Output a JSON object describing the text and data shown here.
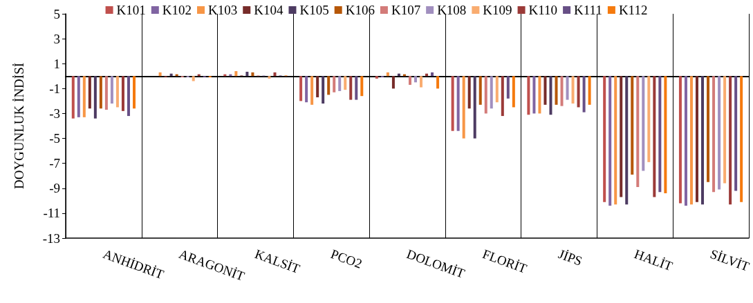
{
  "chart_data": {
    "type": "bar",
    "ylabel": "DOYGUNLUK İNDİSİ",
    "categories": [
      "ANHİDRİT",
      "ARAGONİT",
      "KALSİT",
      "PCO2",
      "DOLOMİT",
      "FLORİT",
      "JİPS",
      "HALİT",
      "SİLVİT"
    ],
    "series": [
      {
        "name": "K101",
        "color": "#c0504d",
        "values": [
          -3.4,
          0,
          0.15,
          -2.0,
          -0.2,
          -4.4,
          -3.1,
          -10.1,
          -10.2
        ]
      },
      {
        "name": "K102",
        "color": "#8064a2",
        "values": [
          -3.3,
          0,
          0.15,
          -2.1,
          -0.1,
          -4.4,
          -3.0,
          -10.4,
          -10.4
        ]
      },
      {
        "name": "K103",
        "color": "#f79646",
        "values": [
          -3.3,
          0.3,
          0.4,
          -2.3,
          0.3,
          -5.0,
          -3.0,
          -10.3,
          -10.3
        ]
      },
      {
        "name": "K104",
        "color": "#772c2a",
        "values": [
          -2.6,
          -0.1,
          0.05,
          -1.7,
          -1.0,
          -2.6,
          -2.3,
          -9.7,
          -10.1
        ]
      },
      {
        "name": "K105",
        "color": "#4d3b62",
        "values": [
          -3.4,
          0.2,
          0.35,
          -2.2,
          0.2,
          -5.0,
          -3.1,
          -10.3,
          -10.3
        ]
      },
      {
        "name": "K106",
        "color": "#b65708",
        "values": [
          -2.6,
          0.15,
          0.3,
          -1.5,
          0.15,
          -2.3,
          -2.3,
          -7.9,
          -8.5
        ]
      },
      {
        "name": "K107",
        "color": "#d37b79",
        "values": [
          -2.7,
          -0.1,
          0.05,
          -1.3,
          -0.7,
          -3.0,
          -2.4,
          -8.9,
          -9.3
        ]
      },
      {
        "name": "K108",
        "color": "#a18fbf",
        "values": [
          -2.2,
          -0.1,
          0.05,
          -1.2,
          -0.5,
          -2.6,
          -1.9,
          -7.6,
          -9.1
        ]
      },
      {
        "name": "K109",
        "color": "#f9ac70",
        "values": [
          -2.5,
          -0.4,
          -0.2,
          -1.1,
          -0.9,
          -2.1,
          -2.2,
          -6.9,
          -8.6
        ]
      },
      {
        "name": "K110",
        "color": "#9b3a38",
        "values": [
          -2.8,
          0.15,
          0.3,
          -1.9,
          0.2,
          -3.2,
          -2.5,
          -9.7,
          -10.3
        ]
      },
      {
        "name": "K111",
        "color": "#674f86",
        "values": [
          -3.2,
          -0.1,
          0.05,
          -1.9,
          0.3,
          -1.8,
          -2.9,
          -9.3,
          -9.2
        ]
      },
      {
        "name": "K112",
        "color": "#f57a0e",
        "values": [
          -2.6,
          -0.1,
          0.05,
          -1.6,
          -1.0,
          -2.5,
          -2.3,
          -9.4,
          -10.1
        ]
      }
    ],
    "ylim": [
      -13,
      5
    ],
    "yticks": [
      -13,
      -11,
      -9,
      -7,
      -5,
      -3,
      -1,
      1,
      3,
      5
    ],
    "grid": "x",
    "legend": "top"
  }
}
